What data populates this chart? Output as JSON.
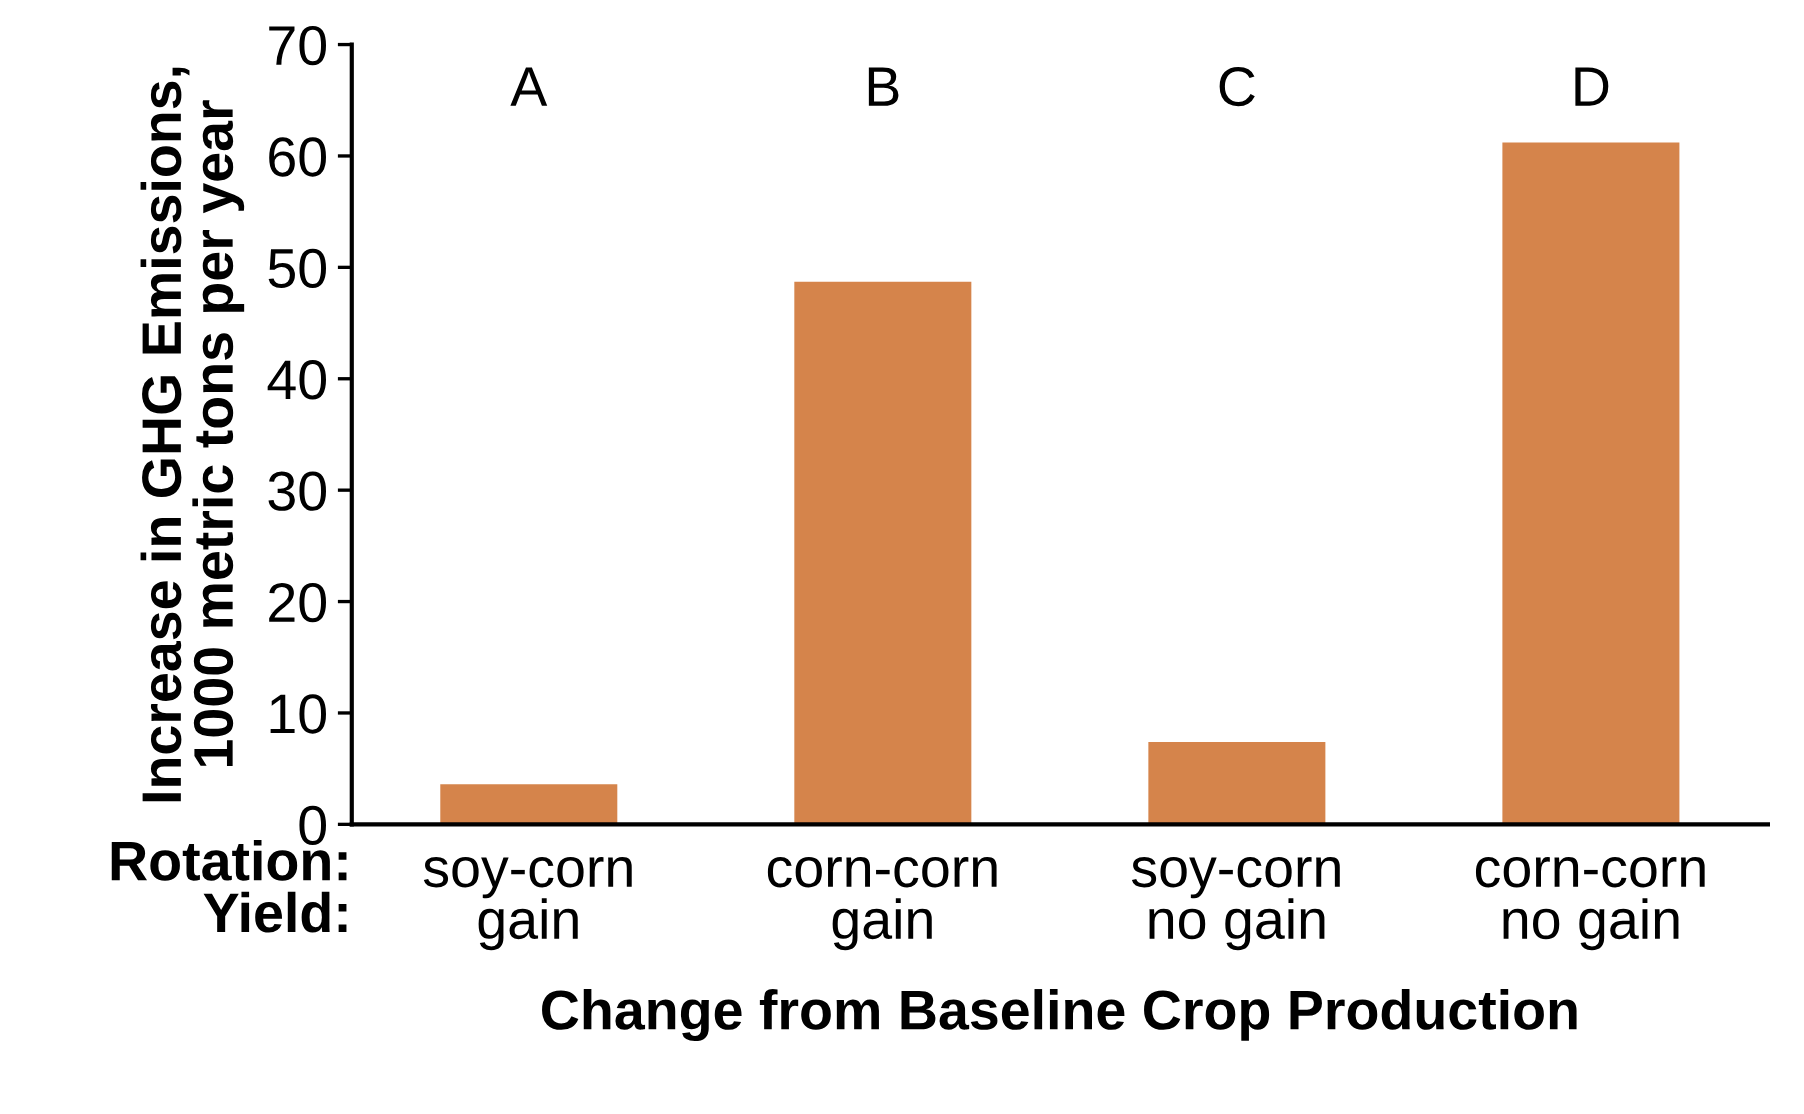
{
  "chart_data": {
    "type": "bar",
    "xlabel": "Change from Baseline Crop Production",
    "ylabel": "Increase in GHG Emissions,\n1000 metric tons per year",
    "categories": [
      "soy-corn\ngain",
      "corn-corn\ngain",
      "soy-corn\nno gain",
      "corn-corn\nno gain"
    ],
    "values": [
      3.6,
      48.7,
      7.4,
      61.2
    ],
    "color": "#d5844b",
    "ylim": [
      0,
      70
    ],
    "yticks": [
      0,
      10,
      20,
      30,
      40,
      50,
      60,
      70
    ],
    "grid": false,
    "annotations": [
      "A",
      "B",
      "C",
      "D",
      "Rotation:\nYield:"
    ]
  }
}
